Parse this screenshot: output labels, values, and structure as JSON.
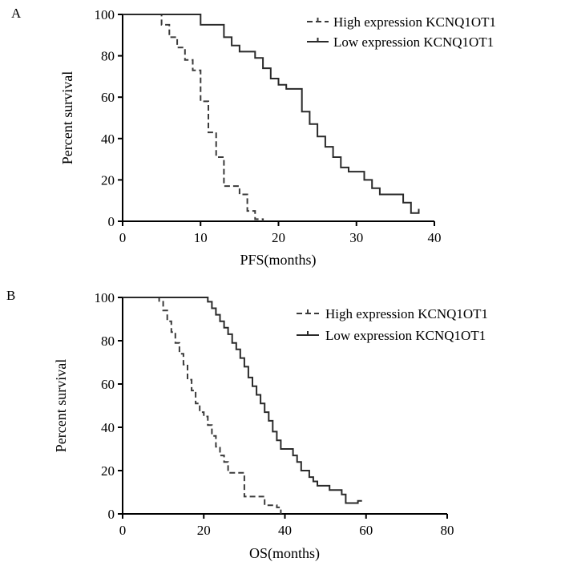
{
  "chart_data": [
    {
      "type": "line",
      "subtype": "kaplan-meier",
      "panel_label": "A",
      "xlabel": "PFS(months)",
      "ylabel": "Percent survival",
      "xlim": [
        0,
        40
      ],
      "ylim": [
        0,
        100
      ],
      "xticks": [
        0,
        10,
        20,
        30,
        40
      ],
      "yticks": [
        0,
        20,
        40,
        60,
        80,
        100
      ],
      "legend": {
        "placement": "top-right"
      },
      "series": [
        {
          "name": "High expression KCNQ1OT1",
          "style": "dashed",
          "color": "#3a3a3a",
          "steps": [
            [
              0,
              100
            ],
            [
              5,
              100
            ],
            [
              5,
              95
            ],
            [
              6,
              95
            ],
            [
              6,
              89
            ],
            [
              7,
              89
            ],
            [
              7,
              84
            ],
            [
              8,
              84
            ],
            [
              8,
              78
            ],
            [
              9,
              78
            ],
            [
              9,
              73
            ],
            [
              10,
              73
            ],
            [
              10,
              58
            ],
            [
              11,
              58
            ],
            [
              11,
              43
            ],
            [
              12,
              43
            ],
            [
              12,
              31
            ],
            [
              13,
              31
            ],
            [
              13,
              17
            ],
            [
              15,
              17
            ],
            [
              15,
              13
            ],
            [
              16,
              13
            ],
            [
              16,
              5
            ],
            [
              17,
              5
            ],
            [
              17,
              1
            ],
            [
              18,
              1
            ],
            [
              18,
              0
            ]
          ]
        },
        {
          "name": "Low expression KCNQ1OT1",
          "style": "solid",
          "color": "#2a2a2a",
          "steps": [
            [
              0,
              100
            ],
            [
              10,
              100
            ],
            [
              10,
              95
            ],
            [
              13,
              95
            ],
            [
              13,
              89
            ],
            [
              14,
              89
            ],
            [
              14,
              85
            ],
            [
              15,
              85
            ],
            [
              15,
              82
            ],
            [
              17,
              82
            ],
            [
              17,
              79
            ],
            [
              18,
              79
            ],
            [
              18,
              74
            ],
            [
              19,
              74
            ],
            [
              19,
              69
            ],
            [
              20,
              69
            ],
            [
              20,
              66
            ],
            [
              21,
              66
            ],
            [
              21,
              64
            ],
            [
              23,
              64
            ],
            [
              23,
              53
            ],
            [
              24,
              53
            ],
            [
              24,
              47
            ],
            [
              25,
              47
            ],
            [
              25,
              41
            ],
            [
              26,
              41
            ],
            [
              26,
              36
            ],
            [
              27,
              36
            ],
            [
              27,
              31
            ],
            [
              28,
              31
            ],
            [
              28,
              26
            ],
            [
              29,
              26
            ],
            [
              29,
              24
            ],
            [
              31,
              24
            ],
            [
              31,
              20
            ],
            [
              32,
              20
            ],
            [
              32,
              16
            ],
            [
              33,
              16
            ],
            [
              33,
              13
            ],
            [
              36,
              13
            ],
            [
              36,
              9
            ],
            [
              37,
              9
            ],
            [
              37,
              4
            ],
            [
              38,
              4
            ],
            [
              38,
              6
            ]
          ]
        }
      ]
    },
    {
      "type": "line",
      "subtype": "kaplan-meier",
      "panel_label": "B",
      "xlabel": "OS(months)",
      "ylabel": "Percent survival",
      "xlim": [
        0,
        80
      ],
      "ylim": [
        0,
        100
      ],
      "xticks": [
        0,
        20,
        40,
        60,
        80
      ],
      "yticks": [
        0,
        20,
        40,
        60,
        80,
        100
      ],
      "legend": {
        "placement": "top-right"
      },
      "series": [
        {
          "name": "High expression KCNQ1OT1",
          "style": "dashed",
          "color": "#3a3a3a",
          "steps": [
            [
              0,
              100
            ],
            [
              9,
              100
            ],
            [
              9,
              98
            ],
            [
              10,
              98
            ],
            [
              10,
              94
            ],
            [
              11,
              94
            ],
            [
              11,
              89
            ],
            [
              12,
              89
            ],
            [
              12,
              84
            ],
            [
              13,
              84
            ],
            [
              13,
              79
            ],
            [
              14,
              79
            ],
            [
              14,
              74
            ],
            [
              15,
              74
            ],
            [
              15,
              69
            ],
            [
              16,
              69
            ],
            [
              16,
              62
            ],
            [
              17,
              62
            ],
            [
              17,
              57
            ],
            [
              18,
              57
            ],
            [
              18,
              51
            ],
            [
              19,
              51
            ],
            [
              19,
              47
            ],
            [
              20,
              47
            ],
            [
              20,
              45
            ],
            [
              21,
              45
            ],
            [
              21,
              41
            ],
            [
              22,
              41
            ],
            [
              22,
              36
            ],
            [
              23,
              36
            ],
            [
              23,
              31
            ],
            [
              24,
              31
            ],
            [
              24,
              27
            ],
            [
              25,
              27
            ],
            [
              25,
              24
            ],
            [
              26,
              24
            ],
            [
              26,
              19
            ],
            [
              30,
              19
            ],
            [
              30,
              8
            ],
            [
              35,
              8
            ],
            [
              35,
              4
            ],
            [
              38,
              4
            ],
            [
              38,
              3
            ],
            [
              39,
              3
            ],
            [
              39,
              0
            ]
          ]
        },
        {
          "name": "Low expression KCNQ1OT1",
          "style": "solid",
          "color": "#2a2a2a",
          "steps": [
            [
              0,
              100
            ],
            [
              21,
              100
            ],
            [
              21,
              98
            ],
            [
              22,
              98
            ],
            [
              22,
              95
            ],
            [
              23,
              95
            ],
            [
              23,
              92
            ],
            [
              24,
              92
            ],
            [
              24,
              89
            ],
            [
              25,
              89
            ],
            [
              25,
              86
            ],
            [
              26,
              86
            ],
            [
              26,
              83
            ],
            [
              27,
              83
            ],
            [
              27,
              79
            ],
            [
              28,
              79
            ],
            [
              28,
              76
            ],
            [
              29,
              76
            ],
            [
              29,
              72
            ],
            [
              30,
              72
            ],
            [
              30,
              68
            ],
            [
              31,
              68
            ],
            [
              31,
              63
            ],
            [
              32,
              63
            ],
            [
              32,
              59
            ],
            [
              33,
              59
            ],
            [
              33,
              55
            ],
            [
              34,
              55
            ],
            [
              34,
              51
            ],
            [
              35,
              51
            ],
            [
              35,
              47
            ],
            [
              36,
              47
            ],
            [
              36,
              43
            ],
            [
              37,
              43
            ],
            [
              37,
              38
            ],
            [
              38,
              38
            ],
            [
              38,
              34
            ],
            [
              39,
              34
            ],
            [
              39,
              30
            ],
            [
              42,
              30
            ],
            [
              42,
              27
            ],
            [
              43,
              27
            ],
            [
              43,
              24
            ],
            [
              44,
              24
            ],
            [
              44,
              20
            ],
            [
              46,
              20
            ],
            [
              46,
              17
            ],
            [
              47,
              17
            ],
            [
              47,
              15
            ],
            [
              48,
              15
            ],
            [
              48,
              13
            ],
            [
              51,
              13
            ],
            [
              51,
              11
            ],
            [
              54,
              11
            ],
            [
              54,
              9
            ],
            [
              55,
              9
            ],
            [
              55,
              5
            ],
            [
              58,
              5
            ],
            [
              58,
              6
            ],
            [
              59,
              6
            ]
          ]
        }
      ]
    }
  ]
}
